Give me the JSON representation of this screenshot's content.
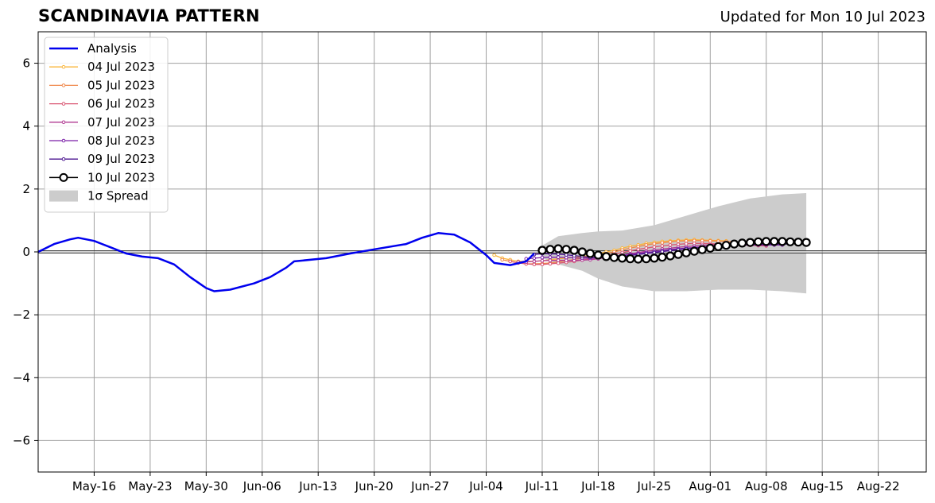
{
  "header": {
    "title": "SCANDINAVIA PATTERN",
    "subtitle": "Updated for Mon 10 Jul 2023"
  },
  "chart_data": {
    "type": "line",
    "title": "SCANDINAVIA PATTERN",
    "xlabel": "",
    "ylabel": "",
    "xlim": [
      "2023-05-09",
      "2023-08-28"
    ],
    "ylim": [
      -7,
      7
    ],
    "grid": true,
    "legend_position": "top-left",
    "x_ticks": [
      {
        "date": "2023-05-16",
        "label": "May-16"
      },
      {
        "date": "2023-05-23",
        "label": "May-23"
      },
      {
        "date": "2023-05-30",
        "label": "May-30"
      },
      {
        "date": "2023-06-06",
        "label": "Jun-06"
      },
      {
        "date": "2023-06-13",
        "label": "Jun-13"
      },
      {
        "date": "2023-06-20",
        "label": "Jun-20"
      },
      {
        "date": "2023-06-27",
        "label": "Jun-27"
      },
      {
        "date": "2023-07-04",
        "label": "Jul-04"
      },
      {
        "date": "2023-07-11",
        "label": "Jul-11"
      },
      {
        "date": "2023-07-18",
        "label": "Jul-18"
      },
      {
        "date": "2023-07-25",
        "label": "Jul-25"
      },
      {
        "date": "2023-08-01",
        "label": "Aug-01"
      },
      {
        "date": "2023-08-08",
        "label": "Aug-08"
      },
      {
        "date": "2023-08-15",
        "label": "Aug-15"
      },
      {
        "date": "2023-08-22",
        "label": "Aug-22"
      }
    ],
    "y_ticks": [
      {
        "value": 6,
        "label": "6"
      },
      {
        "value": 4,
        "label": "4"
      },
      {
        "value": 2,
        "label": "2"
      },
      {
        "value": 0,
        "label": "0"
      },
      {
        "value": -2,
        "label": "−2"
      },
      {
        "value": -4,
        "label": "−4"
      },
      {
        "value": -6,
        "label": "−6"
      }
    ],
    "analysis": {
      "name": "Analysis",
      "color": "#0000ee",
      "points": [
        {
          "x": "2023-05-09",
          "y": 0.0
        },
        {
          "x": "2023-05-11",
          "y": 0.25
        },
        {
          "x": "2023-05-13",
          "y": 0.4
        },
        {
          "x": "2023-05-14",
          "y": 0.45
        },
        {
          "x": "2023-05-16",
          "y": 0.35
        },
        {
          "x": "2023-05-18",
          "y": 0.15
        },
        {
          "x": "2023-05-20",
          "y": -0.05
        },
        {
          "x": "2023-05-22",
          "y": -0.15
        },
        {
          "x": "2023-05-24",
          "y": -0.2
        },
        {
          "x": "2023-05-26",
          "y": -0.4
        },
        {
          "x": "2023-05-28",
          "y": -0.8
        },
        {
          "x": "2023-05-30",
          "y": -1.15
        },
        {
          "x": "2023-05-31",
          "y": -1.25
        },
        {
          "x": "2023-06-02",
          "y": -1.2
        },
        {
          "x": "2023-06-05",
          "y": -1.0
        },
        {
          "x": "2023-06-07",
          "y": -0.8
        },
        {
          "x": "2023-06-09",
          "y": -0.5
        },
        {
          "x": "2023-06-10",
          "y": -0.3
        },
        {
          "x": "2023-06-14",
          "y": -0.2
        },
        {
          "x": "2023-06-17",
          "y": -0.05
        },
        {
          "x": "2023-06-20",
          "y": 0.08
        },
        {
          "x": "2023-06-24",
          "y": 0.25
        },
        {
          "x": "2023-06-26",
          "y": 0.45
        },
        {
          "x": "2023-06-28",
          "y": 0.6
        },
        {
          "x": "2023-06-30",
          "y": 0.55
        },
        {
          "x": "2023-07-02",
          "y": 0.3
        },
        {
          "x": "2023-07-04",
          "y": -0.1
        },
        {
          "x": "2023-07-05",
          "y": -0.35
        },
        {
          "x": "2023-07-07",
          "y": -0.42
        },
        {
          "x": "2023-07-09",
          "y": -0.3
        },
        {
          "x": "2023-07-10",
          "y": -0.05
        }
      ]
    },
    "series": [
      {
        "name": "04 Jul 2023",
        "color": "#f9b53a",
        "x": [
          "2023-07-05",
          "2023-07-06",
          "2023-07-07",
          "2023-07-08",
          "2023-07-09",
          "2023-07-10",
          "2023-07-11",
          "2023-07-12",
          "2023-07-13",
          "2023-07-14",
          "2023-07-15",
          "2023-07-16",
          "2023-07-17",
          "2023-07-18",
          "2023-07-19",
          "2023-07-20",
          "2023-07-21",
          "2023-07-22",
          "2023-07-23",
          "2023-07-24",
          "2023-07-25",
          "2023-07-26",
          "2023-07-27",
          "2023-07-28",
          "2023-07-29",
          "2023-07-30",
          "2023-07-31",
          "2023-08-01",
          "2023-08-02",
          "2023-08-03"
        ],
        "y": [
          -0.1,
          -0.2,
          -0.25,
          -0.3,
          -0.3,
          -0.3,
          -0.28,
          -0.25,
          -0.22,
          -0.2,
          -0.18,
          -0.15,
          -0.1,
          -0.05,
          0.0,
          0.05,
          0.12,
          0.18,
          0.22,
          0.27,
          0.3,
          0.33,
          0.35,
          0.37,
          0.38,
          0.39,
          0.38,
          0.37,
          0.36,
          0.35
        ]
      },
      {
        "name": "05 Jul 2023",
        "color": "#f0874a",
        "x": [
          "2023-07-06",
          "2023-07-07",
          "2023-07-08",
          "2023-07-09",
          "2023-07-10",
          "2023-07-11",
          "2023-07-12",
          "2023-07-13",
          "2023-07-14",
          "2023-07-15",
          "2023-07-16",
          "2023-07-17",
          "2023-07-18",
          "2023-07-19",
          "2023-07-20",
          "2023-07-21",
          "2023-07-22",
          "2023-07-23",
          "2023-07-24",
          "2023-07-25",
          "2023-07-26",
          "2023-07-27",
          "2023-07-28",
          "2023-07-29",
          "2023-07-30",
          "2023-07-31",
          "2023-08-01",
          "2023-08-02",
          "2023-08-03",
          "2023-08-04"
        ],
        "y": [
          -0.25,
          -0.3,
          -0.35,
          -0.38,
          -0.38,
          -0.37,
          -0.35,
          -0.32,
          -0.28,
          -0.24,
          -0.2,
          -0.15,
          -0.1,
          -0.05,
          0.0,
          0.06,
          0.12,
          0.17,
          0.22,
          0.26,
          0.29,
          0.32,
          0.34,
          0.35,
          0.36,
          0.36,
          0.35,
          0.34,
          0.33,
          0.32
        ]
      },
      {
        "name": "06 Jul 2023",
        "color": "#d95672",
        "x": [
          "2023-07-07",
          "2023-07-08",
          "2023-07-09",
          "2023-07-10",
          "2023-07-11",
          "2023-07-12",
          "2023-07-13",
          "2023-07-14",
          "2023-07-15",
          "2023-07-16",
          "2023-07-17",
          "2023-07-18",
          "2023-07-19",
          "2023-07-20",
          "2023-07-21",
          "2023-07-22",
          "2023-07-23",
          "2023-07-24",
          "2023-07-25",
          "2023-07-26",
          "2023-07-27",
          "2023-07-28",
          "2023-07-29",
          "2023-07-30",
          "2023-07-31",
          "2023-08-01",
          "2023-08-02",
          "2023-08-03",
          "2023-08-04",
          "2023-08-05",
          "2023-08-06",
          "2023-08-07",
          "2023-08-08"
        ],
        "y": [
          -0.3,
          -0.35,
          -0.38,
          -0.4,
          -0.4,
          -0.38,
          -0.36,
          -0.33,
          -0.3,
          -0.26,
          -0.22,
          -0.17,
          -0.12,
          -0.07,
          -0.02,
          0.03,
          0.08,
          0.12,
          0.16,
          0.19,
          0.22,
          0.24,
          0.26,
          0.27,
          0.27,
          0.26,
          0.25,
          0.24,
          0.23,
          0.22,
          0.21,
          0.2,
          0.19
        ]
      },
      {
        "name": "07 Jul 2023",
        "color": "#b03a92",
        "x": [
          "2023-07-08",
          "2023-07-09",
          "2023-07-10",
          "2023-07-11",
          "2023-07-12",
          "2023-07-13",
          "2023-07-14",
          "2023-07-15",
          "2023-07-16",
          "2023-07-17",
          "2023-07-18",
          "2023-07-19",
          "2023-07-20",
          "2023-07-21",
          "2023-07-22",
          "2023-07-23",
          "2023-07-24",
          "2023-07-25",
          "2023-07-26",
          "2023-07-27",
          "2023-07-28",
          "2023-07-29",
          "2023-07-30",
          "2023-07-31",
          "2023-08-01",
          "2023-08-02",
          "2023-08-03",
          "2023-08-04",
          "2023-08-05",
          "2023-08-06",
          "2023-08-07",
          "2023-08-08",
          "2023-08-09"
        ],
        "y": [
          -0.32,
          -0.32,
          -0.3,
          -0.28,
          -0.27,
          -0.27,
          -0.27,
          -0.27,
          -0.26,
          -0.25,
          -0.22,
          -0.18,
          -0.14,
          -0.1,
          -0.06,
          -0.02,
          0.02,
          0.06,
          0.09,
          0.12,
          0.15,
          0.17,
          0.19,
          0.21,
          0.22,
          0.23,
          0.24,
          0.24,
          0.24,
          0.24,
          0.24,
          0.23,
          0.23
        ]
      },
      {
        "name": "08 Jul 2023",
        "color": "#7b1fa8",
        "x": [
          "2023-07-09",
          "2023-07-10",
          "2023-07-11",
          "2023-07-12",
          "2023-07-13",
          "2023-07-14",
          "2023-07-15",
          "2023-07-16",
          "2023-07-17",
          "2023-07-18",
          "2023-07-19",
          "2023-07-20",
          "2023-07-21",
          "2023-07-22",
          "2023-07-23",
          "2023-07-24",
          "2023-07-25",
          "2023-07-26",
          "2023-07-27",
          "2023-07-28",
          "2023-07-29",
          "2023-07-30",
          "2023-07-31",
          "2023-08-01",
          "2023-08-02",
          "2023-08-03",
          "2023-08-04",
          "2023-08-05",
          "2023-08-06",
          "2023-08-07",
          "2023-08-08",
          "2023-08-09",
          "2023-08-10"
        ],
        "y": [
          -0.22,
          -0.2,
          -0.18,
          -0.17,
          -0.17,
          -0.18,
          -0.19,
          -0.2,
          -0.2,
          -0.19,
          -0.17,
          -0.14,
          -0.11,
          -0.08,
          -0.05,
          -0.02,
          0.01,
          0.04,
          0.07,
          0.1,
          0.12,
          0.14,
          0.16,
          0.18,
          0.19,
          0.2,
          0.21,
          0.22,
          0.22,
          0.22,
          0.22,
          0.22,
          0.22
        ]
      },
      {
        "name": "09 Jul 2023",
        "color": "#4b1590",
        "x": [
          "2023-07-10",
          "2023-07-11",
          "2023-07-12",
          "2023-07-13",
          "2023-07-14",
          "2023-07-15",
          "2023-07-16",
          "2023-07-17",
          "2023-07-18",
          "2023-07-19",
          "2023-07-20",
          "2023-07-21",
          "2023-07-22",
          "2023-07-23",
          "2023-07-24",
          "2023-07-25",
          "2023-07-26",
          "2023-07-27",
          "2023-07-28",
          "2023-07-29",
          "2023-07-30",
          "2023-07-31",
          "2023-08-01",
          "2023-08-02",
          "2023-08-03",
          "2023-08-04",
          "2023-08-05",
          "2023-08-06",
          "2023-08-07",
          "2023-08-08",
          "2023-08-09",
          "2023-08-10",
          "2023-08-11"
        ],
        "y": [
          -0.08,
          -0.06,
          -0.06,
          -0.07,
          -0.09,
          -0.12,
          -0.15,
          -0.17,
          -0.18,
          -0.18,
          -0.16,
          -0.14,
          -0.11,
          -0.08,
          -0.05,
          -0.02,
          0.01,
          0.04,
          0.07,
          0.1,
          0.12,
          0.15,
          0.17,
          0.19,
          0.21,
          0.22,
          0.23,
          0.24,
          0.25,
          0.25,
          0.25,
          0.25,
          0.25
        ]
      },
      {
        "name": "10 Jul 2023",
        "color": "#000000",
        "x": [
          "2023-07-11",
          "2023-07-12",
          "2023-07-13",
          "2023-07-14",
          "2023-07-15",
          "2023-07-16",
          "2023-07-17",
          "2023-07-18",
          "2023-07-19",
          "2023-07-20",
          "2023-07-21",
          "2023-07-22",
          "2023-07-23",
          "2023-07-24",
          "2023-07-25",
          "2023-07-26",
          "2023-07-27",
          "2023-07-28",
          "2023-07-29",
          "2023-07-30",
          "2023-07-31",
          "2023-08-01",
          "2023-08-02",
          "2023-08-03",
          "2023-08-04",
          "2023-08-05",
          "2023-08-06",
          "2023-08-07",
          "2023-08-08",
          "2023-08-09",
          "2023-08-10",
          "2023-08-11",
          "2023-08-12",
          "2023-08-13"
        ],
        "y": [
          0.05,
          0.08,
          0.1,
          0.08,
          0.05,
          0.0,
          -0.05,
          -0.1,
          -0.15,
          -0.18,
          -0.2,
          -0.22,
          -0.23,
          -0.22,
          -0.2,
          -0.17,
          -0.13,
          -0.08,
          -0.03,
          0.02,
          0.07,
          0.12,
          0.17,
          0.21,
          0.25,
          0.28,
          0.3,
          0.32,
          0.33,
          0.33,
          0.33,
          0.32,
          0.31,
          0.3
        ]
      }
    ],
    "spread": {
      "name": "1σ Spread",
      "color": "#cccccc",
      "upper": [
        {
          "x": "2023-07-11",
          "y": 0.2
        },
        {
          "x": "2023-07-13",
          "y": 0.5
        },
        {
          "x": "2023-07-16",
          "y": 0.6
        },
        {
          "x": "2023-07-18",
          "y": 0.65
        },
        {
          "x": "2023-07-21",
          "y": 0.68
        },
        {
          "x": "2023-07-25",
          "y": 0.85
        },
        {
          "x": "2023-07-29",
          "y": 1.15
        },
        {
          "x": "2023-08-02",
          "y": 1.45
        },
        {
          "x": "2023-08-06",
          "y": 1.7
        },
        {
          "x": "2023-08-10",
          "y": 1.83
        },
        {
          "x": "2023-08-13",
          "y": 1.87
        }
      ],
      "lower": [
        {
          "x": "2023-07-11",
          "y": -0.2
        },
        {
          "x": "2023-07-13",
          "y": -0.4
        },
        {
          "x": "2023-07-16",
          "y": -0.6
        },
        {
          "x": "2023-07-18",
          "y": -0.85
        },
        {
          "x": "2023-07-21",
          "y": -1.1
        },
        {
          "x": "2023-07-25",
          "y": -1.25
        },
        {
          "x": "2023-07-29",
          "y": -1.25
        },
        {
          "x": "2023-08-02",
          "y": -1.2
        },
        {
          "x": "2023-08-06",
          "y": -1.2
        },
        {
          "x": "2023-08-10",
          "y": -1.25
        },
        {
          "x": "2023-08-13",
          "y": -1.32
        }
      ]
    },
    "legend": [
      {
        "label": "Analysis",
        "kind": "line",
        "color": "#0000ee"
      },
      {
        "label": "04 Jul 2023",
        "kind": "small-marker",
        "color": "#f9b53a"
      },
      {
        "label": "05 Jul 2023",
        "kind": "small-marker",
        "color": "#f0874a"
      },
      {
        "label": "06 Jul 2023",
        "kind": "small-marker",
        "color": "#d95672"
      },
      {
        "label": "07 Jul 2023",
        "kind": "small-marker",
        "color": "#b03a92"
      },
      {
        "label": "08 Jul 2023",
        "kind": "small-marker",
        "color": "#7b1fa8"
      },
      {
        "label": "09 Jul 2023",
        "kind": "small-marker",
        "color": "#4b1590"
      },
      {
        "label": "10 Jul 2023",
        "kind": "big-marker",
        "color": "#000000"
      },
      {
        "label": "1σ Spread",
        "kind": "patch",
        "color": "#cccccc"
      }
    ]
  }
}
